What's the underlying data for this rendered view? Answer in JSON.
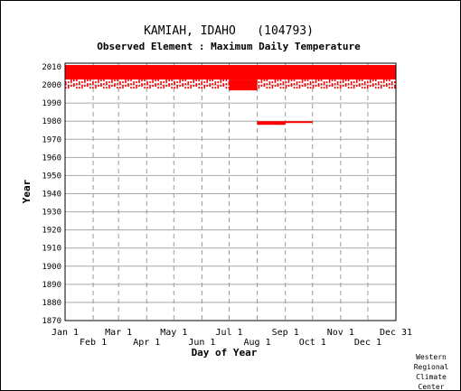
{
  "chart_data": {
    "type": "scatter",
    "title": "KAMIAH, IDAHO   (104793)",
    "subtitle": "Observed Element : Maximum Daily Temperature",
    "xlabel": "Day of Year",
    "ylabel": "Year",
    "xlim": [
      1,
      366
    ],
    "ylim": [
      1870,
      2012
    ],
    "y_ticks": [
      1870,
      1880,
      1890,
      1900,
      1910,
      1920,
      1930,
      1940,
      1950,
      1960,
      1970,
      1980,
      1990,
      2000,
      2010
    ],
    "x_ticks_upper": [
      {
        "label": "Jan 1",
        "day": 1
      },
      {
        "label": "Mar 1",
        "day": 60
      },
      {
        "label": "May 1",
        "day": 121
      },
      {
        "label": "Jul 1",
        "day": 182
      },
      {
        "label": "Sep 1",
        "day": 244
      },
      {
        "label": "Nov 1",
        "day": 305
      },
      {
        "label": "Dec 31",
        "day": 366
      }
    ],
    "x_ticks_lower": [
      {
        "label": "Feb 1",
        "day": 32
      },
      {
        "label": "Apr 1",
        "day": 91
      },
      {
        "label": "Jun 1",
        "day": 152
      },
      {
        "label": "Aug 1",
        "day": 213
      },
      {
        "label": "Oct 1",
        "day": 274
      },
      {
        "label": "Dec 1",
        "day": 335
      }
    ],
    "grid": true,
    "series_color": "#ff0000",
    "observations": [
      {
        "year_start": 2003,
        "year_end": 2011,
        "day_start": 1,
        "day_end": 366,
        "coverage": "complete"
      },
      {
        "year_start": 1998,
        "year_end": 2003,
        "day_start": 1,
        "day_end": 366,
        "coverage": "partial"
      },
      {
        "year_start": 1997,
        "year_end": 2003,
        "day_start": 182,
        "day_end": 213,
        "coverage": "complete"
      },
      {
        "year_start": 1978,
        "year_end": 1980,
        "day_start": 213,
        "day_end": 244,
        "coverage": "complete"
      },
      {
        "year_start": 1979,
        "year_end": 1980,
        "day_start": 244,
        "day_end": 274,
        "coverage": "complete"
      }
    ]
  },
  "credit": [
    "Western",
    "Regional",
    "Climate",
    "Center"
  ]
}
